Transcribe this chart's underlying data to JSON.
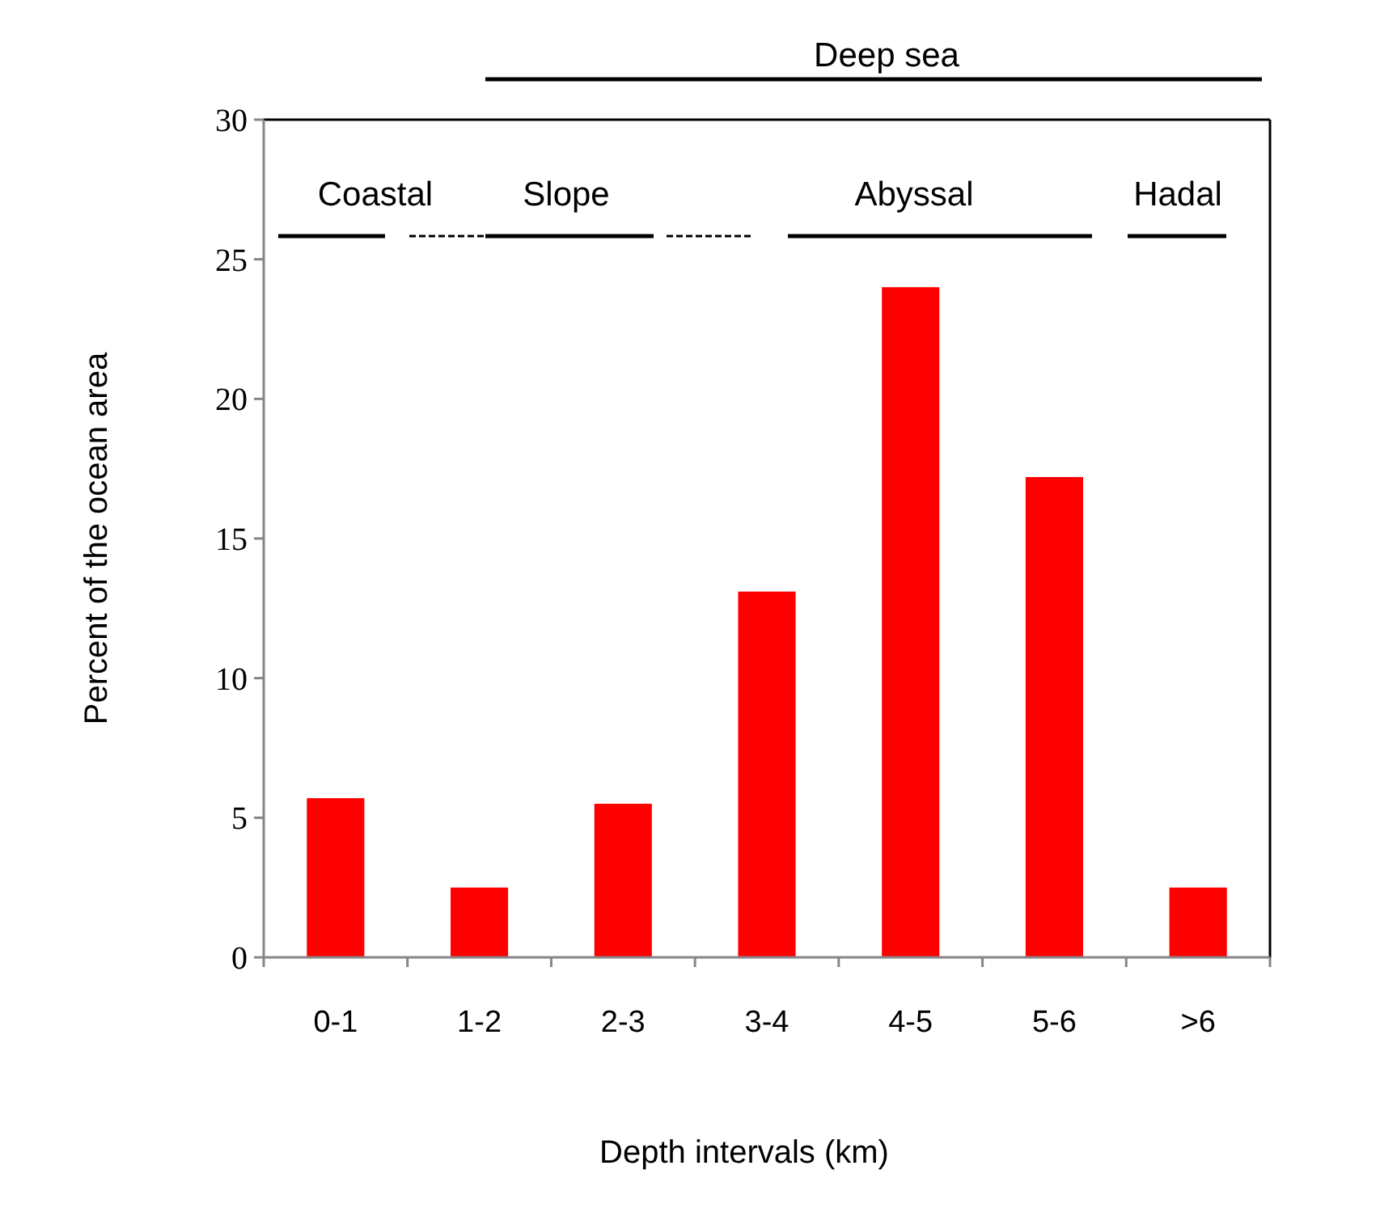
{
  "chart_data": {
    "type": "bar",
    "xlabel": "Depth intervals (km)",
    "ylabel": "Percent of the ocean area",
    "categories": [
      "0-1",
      "1-2",
      "2-3",
      "3-4",
      "4-5",
      "5-6",
      ">6"
    ],
    "values": [
      5.7,
      2.5,
      5.5,
      13.1,
      24.0,
      17.2,
      2.5
    ],
    "color": "#ff0000",
    "ylim": [
      0,
      30
    ],
    "yticks": [
      0,
      5,
      10,
      15,
      20,
      25,
      30
    ],
    "grid": false,
    "annotations": [
      "Deep sea",
      "Coastal",
      "Slope",
      "Abyssal",
      "Hadal"
    ]
  }
}
